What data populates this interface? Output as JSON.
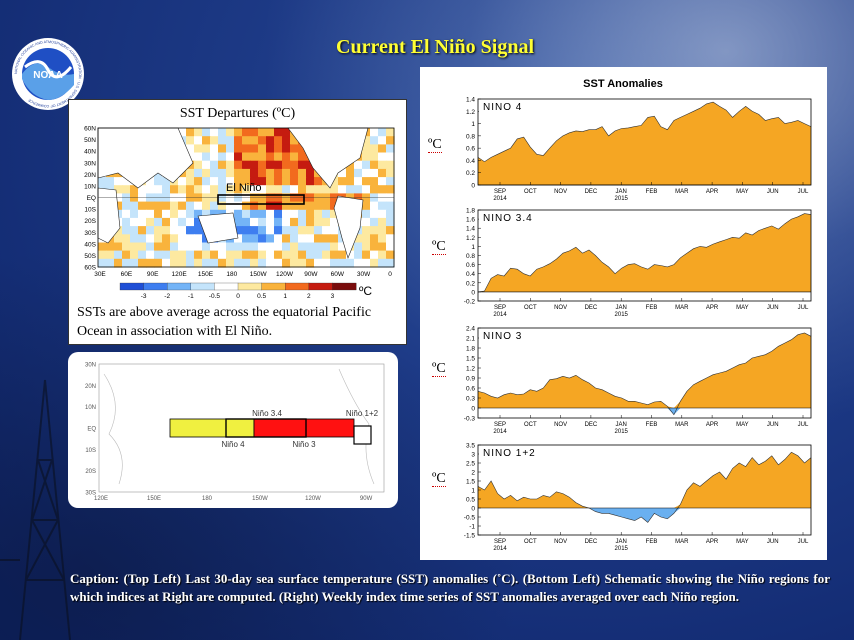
{
  "slide_title": "Current El Niño Signal",
  "logo_text": "NOAA",
  "logo_ring_text": "NATIONAL OCEANIC AND ATMOSPHERIC ADMINISTRATION · U.S. DEPARTMENT OF COMMERCE",
  "map": {
    "title": "SST Departures (ºC)",
    "annotation": "El Niño",
    "lat_labels": [
      "60N",
      "50N",
      "40N",
      "30N",
      "20N",
      "10N",
      "EQ",
      "10S",
      "20S",
      "30S",
      "40S",
      "50S",
      "60S"
    ],
    "lon_labels": [
      "30E",
      "60E",
      "90E",
      "120E",
      "150E",
      "180",
      "150W",
      "120W",
      "90W",
      "60W",
      "30W",
      "0"
    ],
    "colorbar_labels": [
      "-3",
      "-2",
      "-1",
      "-0.5",
      "0",
      "0.5",
      "1",
      "2",
      "3"
    ],
    "colorbar_colors": [
      "#1f4fd6",
      "#3e7ef0",
      "#74b4f7",
      "#c4e4fb",
      "#ffffff",
      "#fde9a0",
      "#f9b33c",
      "#f26a1e",
      "#c51b10",
      "#7a0c0c"
    ],
    "unit": "ºC",
    "description": "SSTs are above average across the equatorial Pacific Ocean in association with El Niño."
  },
  "regions_map": {
    "lat_labels": [
      "30N",
      "20N",
      "10N",
      "EQ",
      "10S",
      "20S",
      "30S"
    ],
    "lon_labels": [
      "120E",
      "150E",
      "180",
      "150W",
      "120W",
      "90W"
    ],
    "regions": [
      {
        "name": "Niño 4",
        "color": "#f0f040"
      },
      {
        "name": "Niño 3.4",
        "color": ""
      },
      {
        "name": "Niño 3",
        "color": "#ff1111"
      },
      {
        "name": "Niño 1+2",
        "color": "#ffffff"
      }
    ]
  },
  "chart_title": "SST Anomalies",
  "unit_label": "ºC",
  "chart_data": [
    {
      "type": "area",
      "title": "NINO 4",
      "x_labels": [
        "SEP\n2014",
        "OCT",
        "NOV",
        "DEC",
        "JAN\n2015",
        "FEB",
        "MAR",
        "APR",
        "MAY",
        "JUN",
        "JUL"
      ],
      "ylim": [
        0,
        1.4
      ],
      "yticks": [
        "0",
        "0.2",
        "0.4",
        "0.6",
        "0.8",
        "1",
        "1.2",
        "1.4"
      ],
      "values": [
        0.45,
        0.38,
        0.45,
        0.5,
        0.55,
        0.6,
        0.75,
        0.78,
        0.62,
        0.5,
        0.48,
        0.6,
        0.72,
        0.8,
        0.85,
        0.88,
        0.87,
        0.9,
        0.9,
        0.95,
        0.8,
        0.88,
        0.92,
        0.93,
        0.95,
        0.97,
        1.1,
        1.12,
        0.95,
        0.9,
        1.05,
        1.1,
        1.15,
        1.2,
        1.25,
        1.32,
        1.35,
        1.28,
        1.22,
        1.1,
        1.2,
        1.28,
        1.2,
        1.15,
        1.05,
        1.08,
        1.1,
        1.0,
        1.02,
        1.05,
        1.0,
        0.95
      ]
    },
    {
      "type": "area",
      "title": "NINO 3.4",
      "x_labels": [
        "SEP\n2014",
        "OCT",
        "NOV",
        "DEC",
        "JAN\n2015",
        "FEB",
        "MAR",
        "APR",
        "MAY",
        "JUN",
        "JUL"
      ],
      "ylim": [
        -0.2,
        1.8
      ],
      "yticks": [
        "-0.2",
        "0",
        "0.2",
        "0.4",
        "0.6",
        "0.8",
        "1",
        "1.2",
        "1.4",
        "1.6",
        "1.8"
      ],
      "values": [
        0.0,
        0.02,
        0.3,
        0.38,
        0.35,
        0.52,
        0.5,
        0.4,
        0.35,
        0.5,
        0.55,
        0.62,
        0.72,
        0.85,
        0.9,
        0.98,
        0.85,
        0.92,
        0.8,
        0.65,
        0.55,
        0.4,
        0.52,
        0.6,
        0.62,
        0.55,
        0.5,
        0.6,
        0.58,
        0.55,
        0.6,
        0.75,
        0.85,
        0.95,
        1.0,
        0.98,
        1.05,
        1.1,
        1.15,
        1.2,
        1.18,
        1.3,
        1.25,
        1.35,
        1.4,
        1.45,
        1.38,
        1.5,
        1.6,
        1.65,
        1.72,
        1.7
      ]
    },
    {
      "type": "area",
      "title": "NINO 3",
      "x_labels": [
        "SEP\n2014",
        "OCT",
        "NOV",
        "DEC",
        "JAN\n2015",
        "FEB",
        "MAR",
        "APR",
        "MAY",
        "JUN",
        "JUL"
      ],
      "ylim": [
        -0.3,
        2.4
      ],
      "yticks": [
        "-0.3",
        "0",
        "0.3",
        "0.6",
        "0.9",
        "1.2",
        "1.5",
        "1.8",
        "2.1",
        "2.4"
      ],
      "values": [
        0.5,
        0.45,
        0.35,
        0.3,
        0.4,
        0.45,
        0.4,
        0.42,
        0.55,
        0.5,
        0.6,
        0.85,
        0.88,
        0.95,
        0.9,
        0.98,
        0.85,
        0.75,
        0.6,
        0.55,
        0.45,
        0.35,
        0.3,
        0.2,
        0.2,
        0.15,
        0.1,
        0.18,
        0.2,
        0.05,
        -0.2,
        0.2,
        0.5,
        0.7,
        0.8,
        0.9,
        1.0,
        1.05,
        1.1,
        1.2,
        1.3,
        1.35,
        1.5,
        1.55,
        1.6,
        1.7,
        1.85,
        1.95,
        2.05,
        2.2,
        2.25,
        2.15
      ]
    },
    {
      "type": "area",
      "title": "NINO 1+2",
      "x_labels": [
        "SEP\n2014",
        "OCT",
        "NOV",
        "DEC",
        "JAN\n2015",
        "FEB",
        "MAR",
        "APR",
        "MAY",
        "JUN",
        "JUL"
      ],
      "ylim": [
        -1.5,
        3.5
      ],
      "yticks": [
        "-1.5",
        "-1",
        "-0.5",
        "0",
        "0.5",
        "1",
        "1.5",
        "2",
        "2.5",
        "3",
        "3.5"
      ],
      "values": [
        1.2,
        1.0,
        1.5,
        0.8,
        0.5,
        0.7,
        0.4,
        0.6,
        0.5,
        0.5,
        0.7,
        0.6,
        0.9,
        0.8,
        0.6,
        0.3,
        0.1,
        0.0,
        -0.2,
        -0.3,
        -0.3,
        -0.4,
        -0.5,
        -0.6,
        -0.7,
        -0.5,
        -0.8,
        -0.3,
        -0.5,
        -0.6,
        -0.3,
        0.2,
        1.0,
        1.4,
        1.2,
        1.5,
        1.8,
        2.0,
        1.6,
        2.2,
        2.5,
        2.3,
        2.8,
        2.4,
        2.6,
        2.9,
        2.4,
        2.7,
        3.1,
        2.9,
        2.5,
        2.8
      ]
    }
  ],
  "caption": "Caption: (Top Left) Last 30-day sea surface temperature (SST) anomalies (˚C). (Bottom Left) Schematic showing the Niño regions for which indices at Right are computed. (Right) Weekly index time series of SST anomalies averaged over each Niño region."
}
